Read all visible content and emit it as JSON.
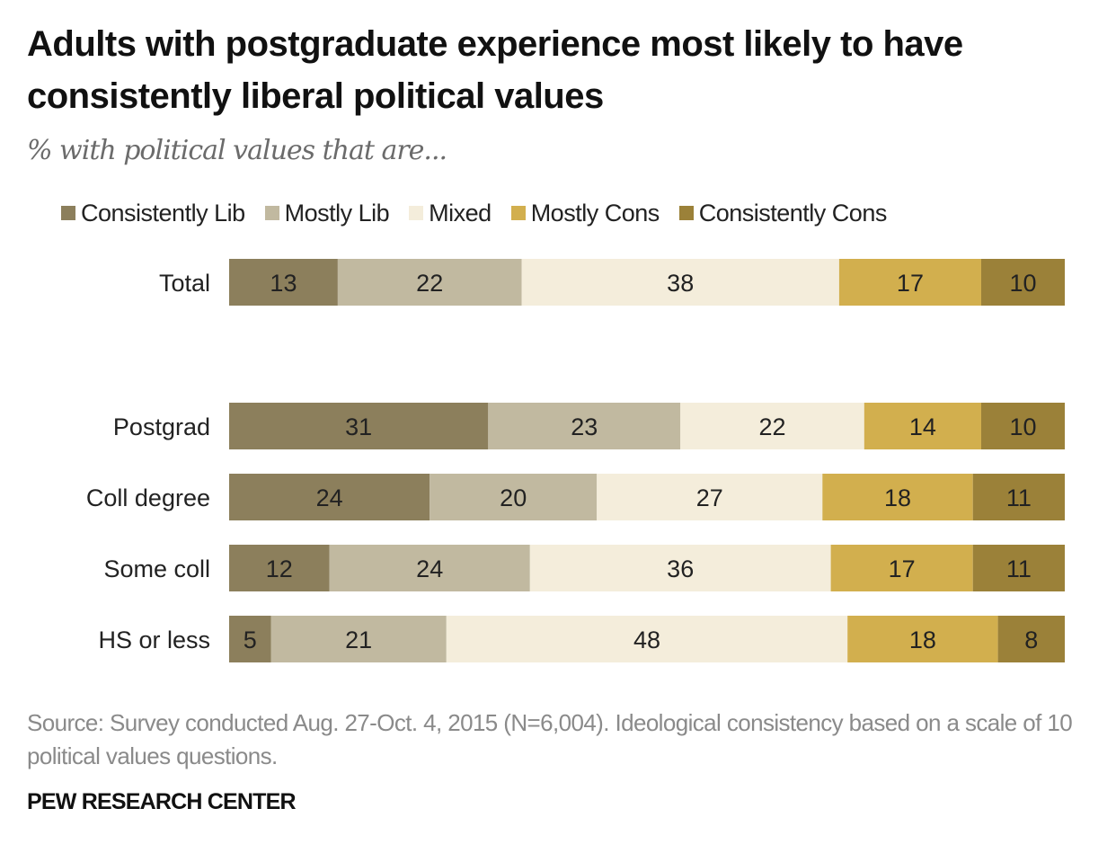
{
  "chart_data": {
    "type": "bar",
    "orientation": "horizontal",
    "stacked": true,
    "title": "Adults with postgraduate experience most likely to have consistently liberal political values",
    "subtitle": "% with political values that are...",
    "categories": [
      "Total",
      "Postgrad",
      "Coll degree",
      "Some coll",
      "HS or less"
    ],
    "series": [
      {
        "name": "Consistently Lib",
        "color": "#8c7f5c",
        "values": [
          13,
          31,
          24,
          12,
          5
        ]
      },
      {
        "name": "Mostly Lib",
        "color": "#c1b9a0",
        "values": [
          22,
          23,
          20,
          24,
          21
        ]
      },
      {
        "name": "Mixed",
        "color": "#f4eddb",
        "values": [
          38,
          22,
          27,
          36,
          48
        ]
      },
      {
        "name": "Mostly Cons",
        "color": "#d2af4e",
        "values": [
          17,
          14,
          18,
          17,
          18
        ]
      },
      {
        "name": "Consistently Cons",
        "color": "#9b8139",
        "values": [
          10,
          10,
          11,
          11,
          8
        ]
      }
    ],
    "xlabel": "",
    "ylabel": "",
    "xlim": [
      0,
      100
    ],
    "grid": false,
    "legend": "top",
    "data_labels": true
  },
  "header": {
    "title": "Adults with postgraduate  experience  most likely to have consistently  liberal political values",
    "subtitle": "% with political values that are..."
  },
  "footer": {
    "source": "Source: Survey conducted Aug. 27-Oct. 4, 2015 (N=6,004). Ideological consistency based on a scale of 10 political values questions.",
    "brand": "PEW RESEARCH CENTER"
  }
}
